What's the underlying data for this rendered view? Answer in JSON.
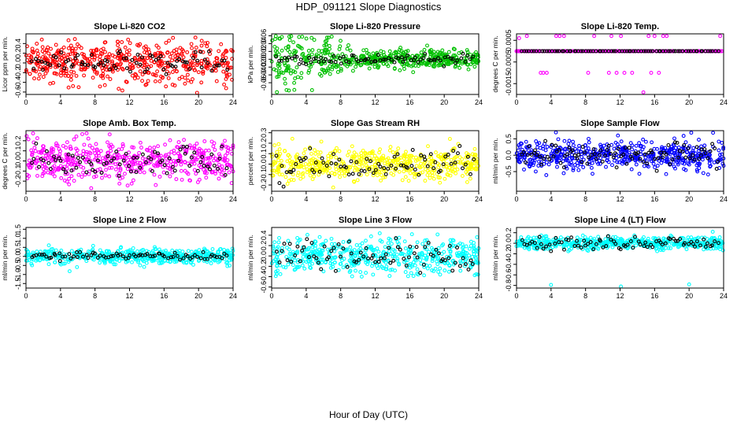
{
  "figure": {
    "title": "HDP_091121  Slope Diagnostics",
    "xlabel": "Hour of Day (UTC)"
  },
  "chart_data": [
    {
      "type": "scatter",
      "title": "Slope Li-820 CO2",
      "xlabel": "",
      "ylabel": "Licor ppm per min.",
      "xlim": [
        0,
        24
      ],
      "ylim": [
        -0.65,
        0.6
      ],
      "xticks": [
        "0",
        "4",
        "8",
        "12",
        "16",
        "20",
        "24"
      ],
      "yticks": [
        "-0.6",
        "-0.4",
        "-0.2",
        "0.0",
        "0.2",
        "0.4"
      ],
      "series": [
        {
          "color": "#ff0000",
          "x_range": [
            0,
            24
          ],
          "y_center": 0.0,
          "y_spread": 0.22,
          "y_min": -0.62,
          "y_max": 0.55,
          "count": 520
        },
        {
          "color": "#000000",
          "x_range": [
            0.5,
            23.5
          ],
          "y_center": 0.0,
          "y_spread": 0.12,
          "y_min": -0.3,
          "y_max": 0.25,
          "count": 80
        }
      ]
    },
    {
      "type": "scatter",
      "title": "Slope Li-820 Pressure",
      "xlabel": "",
      "ylabel": "kPa per min.",
      "xlim": [
        0,
        24
      ],
      "ylim": [
        -0.09,
        0.065
      ],
      "xticks": [
        "0",
        "4",
        "8",
        "12",
        "16",
        "20",
        "24"
      ],
      "yticks": [
        "-0.06",
        "-0.04",
        "-0.02",
        "0.00",
        "0.02",
        "0.04",
        "0.06"
      ],
      "series": [
        {
          "color": "#00c000",
          "x_range": [
            0,
            24
          ],
          "y_center": 0.0,
          "y_spread": 0.012,
          "y_min": -0.085,
          "y_max": 0.06,
          "count": 520,
          "early_spread": 0.03
        },
        {
          "color": "#000000",
          "x_range": [
            0.5,
            23.5
          ],
          "y_center": 0.0,
          "y_spread": 0.006,
          "y_min": -0.03,
          "y_max": 0.03,
          "count": 80
        }
      ]
    },
    {
      "type": "scatter",
      "title": "Slope Li-820 Temp.",
      "xlabel": "",
      "ylabel": "degrees C per min.",
      "xlim": [
        0,
        24
      ],
      "ylim": [
        -0.002,
        0.0008
      ],
      "xticks": [
        "0",
        "4",
        "8",
        "12",
        "16",
        "20",
        "24"
      ],
      "yticks": [
        "-0.0015",
        "-0.0005",
        "0.0005"
      ],
      "series": [
        {
          "color": "#ff00ff",
          "x_range": [
            0,
            24
          ],
          "y_center": 0.0,
          "y_spread": 0.0,
          "count": 300,
          "outliers_x": [
            0.3,
            1.2,
            2.8,
            3.1,
            3.5,
            4.6,
            5.0,
            5.5,
            8.3,
            9.0,
            10.7,
            11.0,
            11.6,
            12.1,
            12.5,
            13.4,
            14.7,
            15.3,
            15.6,
            16.0,
            16.5,
            17.0,
            17.4,
            23.6
          ],
          "outliers_y": [
            0.0006,
            0.0007,
            -0.001,
            -0.001,
            -0.001,
            0.0007,
            0.0007,
            0.0007,
            -0.001,
            0.0007,
            -0.001,
            0.0007,
            -0.001,
            0.0007,
            -0.001,
            -0.001,
            -0.0019,
            0.0007,
            -0.001,
            0.0007,
            -0.001,
            0.0007,
            0.0007,
            0.0007
          ]
        },
        {
          "color": "#000000",
          "x_range": [
            0.5,
            23.5
          ],
          "y_center": 0.0,
          "y_spread": 0.0,
          "count": 80
        }
      ]
    },
    {
      "type": "scatter",
      "title": "Slope Amb. Box Temp.",
      "xlabel": "",
      "ylabel": "degrees C per min.",
      "xlim": [
        0,
        24
      ],
      "ylim": [
        -0.3,
        0.3
      ],
      "xticks": [
        "0",
        "4",
        "8",
        "12",
        "16",
        "20",
        "24"
      ],
      "yticks": [
        "-0.2",
        "-0.1",
        "0.0",
        "0.1",
        "0.2"
      ],
      "series": [
        {
          "color": "#ff00ff",
          "x_range": [
            0,
            24
          ],
          "y_center": 0.0,
          "y_spread": 0.1,
          "y_min": -0.28,
          "y_max": 0.28,
          "count": 520
        },
        {
          "color": "#000000",
          "x_range": [
            0.5,
            23.5
          ],
          "y_center": 0.0,
          "y_spread": 0.07,
          "y_min": -0.2,
          "y_max": 0.22,
          "count": 80
        }
      ]
    },
    {
      "type": "scatter",
      "title": "Slope Gas Stream RH",
      "xlabel": "",
      "ylabel": "percent per min.",
      "xlim": [
        0,
        24
      ],
      "ylim": [
        -0.26,
        0.32
      ],
      "xticks": [
        "0",
        "4",
        "8",
        "12",
        "16",
        "20",
        "24"
      ],
      "yticks": [
        "-0.2",
        "-0.1",
        "0.0",
        "0.1",
        "0.2",
        "0.3"
      ],
      "series": [
        {
          "color": "#ffff00",
          "x_range": [
            0,
            24
          ],
          "y_center": 0.0,
          "y_spread": 0.08,
          "y_min": -0.25,
          "y_max": 0.3,
          "count": 520
        },
        {
          "color": "#000000",
          "x_range": [
            0.5,
            23.5
          ],
          "y_center": 0.0,
          "y_spread": 0.07,
          "y_min": -0.22,
          "y_max": 0.2,
          "count": 80
        }
      ]
    },
    {
      "type": "scatter",
      "title": "Slope Sample Flow",
      "xlabel": "",
      "ylabel": "ml/min per min.",
      "xlim": [
        0,
        24
      ],
      "ylim": [
        -1.1,
        0.75
      ],
      "xticks": [
        "0",
        "4",
        "8",
        "12",
        "16",
        "20",
        "24"
      ],
      "yticks": [
        "-0.5",
        "0.0",
        "0.5"
      ],
      "series": [
        {
          "color": "#0000ff",
          "x_range": [
            0,
            24
          ],
          "y_center": 0.0,
          "y_spread": 0.22,
          "y_min": -1.05,
          "y_max": 0.7,
          "count": 520
        },
        {
          "color": "#000000",
          "x_range": [
            0.5,
            23.5
          ],
          "y_center": 0.05,
          "y_spread": 0.2,
          "y_min": -0.5,
          "y_max": 0.55,
          "count": 100
        }
      ]
    },
    {
      "type": "scatter",
      "title": "Slope Line 2 Flow",
      "xlabel": "",
      "ylabel": "ml/min per min.",
      "xlim": [
        0,
        24
      ],
      "ylim": [
        -1.75,
        1.6
      ],
      "xticks": [
        "0",
        "4",
        "8",
        "12",
        "16",
        "20",
        "24"
      ],
      "yticks": [
        "-1.5",
        "-1.0",
        "-0.5",
        "0.0",
        "0.5",
        "1.0",
        "1.5"
      ],
      "series": [
        {
          "color": "#00ffff",
          "x_range": [
            0,
            24
          ],
          "y_center": 0.0,
          "y_spread": 0.22,
          "y_min": -1.7,
          "y_max": 1.5,
          "count": 520
        },
        {
          "color": "#000000",
          "x_range": [
            0.5,
            23.5
          ],
          "y_center": 0.0,
          "y_spread": 0.1,
          "y_min": -0.35,
          "y_max": 0.35,
          "count": 80
        }
      ]
    },
    {
      "type": "scatter",
      "title": "Slope Line 3 Flow",
      "xlabel": "",
      "ylabel": "ml/min per min.",
      "xlim": [
        0,
        24
      ],
      "ylim": [
        -0.62,
        0.55
      ],
      "xticks": [
        "0",
        "4",
        "8",
        "12",
        "16",
        "20",
        "24"
      ],
      "yticks": [
        "-0.6",
        "-0.4",
        "-0.2",
        "0.0",
        "0.2",
        "0.4"
      ],
      "series": [
        {
          "color": "#00ffff",
          "x_range": [
            0,
            24
          ],
          "y_center": 0.0,
          "y_spread": 0.17,
          "y_min": -0.6,
          "y_max": 0.5,
          "count": 520
        },
        {
          "color": "#000000",
          "x_range": [
            0.5,
            23.5
          ],
          "y_center": 0.0,
          "y_spread": 0.15,
          "y_min": -0.45,
          "y_max": 0.35,
          "count": 80
        }
      ]
    },
    {
      "type": "scatter",
      "title": "Slope Line 4 (LT) Flow",
      "xlabel": "",
      "ylabel": "ml/min per min.",
      "xlim": [
        0,
        24
      ],
      "ylim": [
        -0.85,
        0.3
      ],
      "xticks": [
        "0",
        "4",
        "8",
        "12",
        "16",
        "20",
        "24"
      ],
      "yticks": [
        "-0.8",
        "-0.6",
        "-0.4",
        "-0.2",
        "0.0",
        "0.2"
      ],
      "series": [
        {
          "color": "#00ffff",
          "x_range": [
            0,
            24
          ],
          "y_center": 0.0,
          "y_spread": 0.06,
          "y_min": -0.2,
          "y_max": 0.25,
          "count": 520,
          "outliers_x": [
            4.0,
            12.1,
            20.0
          ],
          "outliers_y": [
            -0.79,
            -0.82,
            -0.78
          ]
        },
        {
          "color": "#000000",
          "x_range": [
            0.5,
            23.5
          ],
          "y_center": 0.0,
          "y_spread": 0.06,
          "y_min": -0.15,
          "y_max": 0.15,
          "count": 80
        }
      ]
    }
  ]
}
